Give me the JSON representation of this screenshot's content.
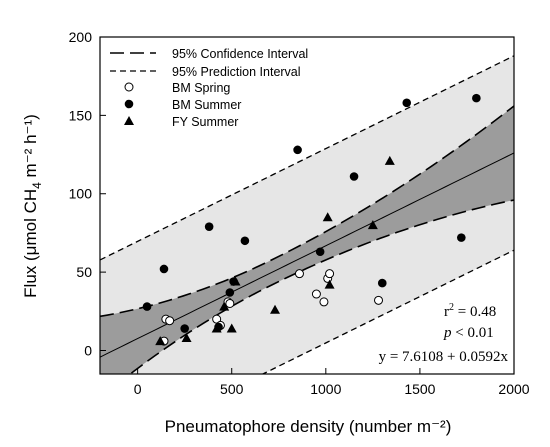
{
  "chart_data": {
    "type": "scatter",
    "xlabel": "Pneumatophore density (number m⁻²)",
    "ylabel_main": "Flux (μmol CH",
    "ylabel_sub": "4",
    "ylabel_rest": " m⁻² h⁻¹)",
    "xlim": [
      -200,
      2000
    ],
    "ylim": [
      -15,
      200
    ],
    "xticks": [
      0,
      500,
      1000,
      1500,
      2000
    ],
    "yticks": [
      0,
      50,
      100,
      150,
      200
    ],
    "grid": false,
    "legend_position": "top-left",
    "legend": {
      "ci_label": "95% Confidence Interval",
      "pi_label": "95% Prediction Interval",
      "bm_spring_label": "BM Spring",
      "bm_summer_label": "BM Summer",
      "fy_summer_label": "FY Summer"
    },
    "regression": {
      "intercept": 7.6108,
      "slope": 0.0592,
      "mean_x": 720,
      "ci_at_xmin": 26,
      "ci_at_xmean": 8,
      "ci_at_xmax": 30,
      "pi_halfwidth": 62
    },
    "stats": {
      "r2_label": "r",
      "r2_sup": "2",
      "r2_value": " = 0.48",
      "p_italic": "p",
      "p_value": " < 0.01",
      "equation": "y = 7.6108 + 0.0592x"
    },
    "series": [
      {
        "name": "BM Spring",
        "marker": "open-circle",
        "points": [
          [
            150,
            20
          ],
          [
            170,
            19
          ],
          [
            140,
            6
          ],
          [
            420,
            20
          ],
          [
            440,
            16
          ],
          [
            480,
            31
          ],
          [
            490,
            30
          ],
          [
            860,
            49
          ],
          [
            950,
            36
          ],
          [
            990,
            31
          ],
          [
            1010,
            46
          ],
          [
            1020,
            49
          ],
          [
            1280,
            32
          ]
        ]
      },
      {
        "name": "BM Summer",
        "marker": "filled-circle",
        "points": [
          [
            50,
            28
          ],
          [
            140,
            52
          ],
          [
            250,
            14
          ],
          [
            380,
            79
          ],
          [
            430,
            15
          ],
          [
            490,
            37
          ],
          [
            510,
            44
          ],
          [
            570,
            70
          ],
          [
            850,
            128
          ],
          [
            970,
            63
          ],
          [
            1150,
            111
          ],
          [
            1300,
            43
          ],
          [
            1430,
            158
          ],
          [
            1720,
            72
          ],
          [
            1800,
            161
          ]
        ]
      },
      {
        "name": "FY Summer",
        "marker": "filled-triangle",
        "points": [
          [
            120,
            6
          ],
          [
            260,
            8
          ],
          [
            420,
            14
          ],
          [
            460,
            28
          ],
          [
            500,
            14
          ],
          [
            520,
            44
          ],
          [
            730,
            26
          ],
          [
            1010,
            85
          ],
          [
            1020,
            42
          ],
          [
            1250,
            80
          ],
          [
            1340,
            121
          ]
        ]
      }
    ]
  }
}
